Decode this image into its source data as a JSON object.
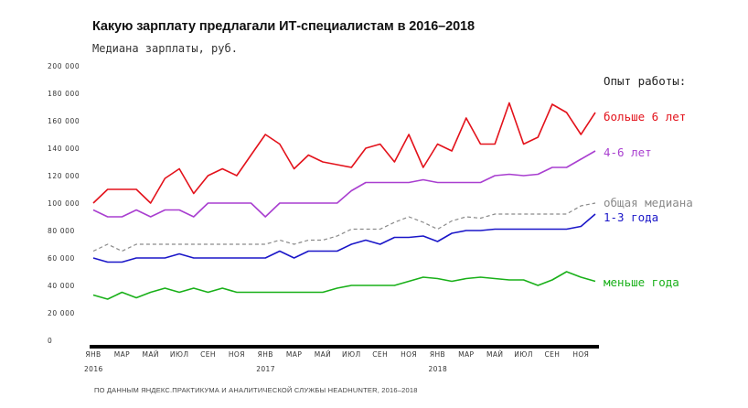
{
  "header": {
    "title": "Какую зарплату предлагали ИТ-специалистам в 2016–2018",
    "subtitle": "Медиана зарплаты, руб."
  },
  "legend_title": "Опыт работы:",
  "source": "ПО ДАННЫМ ЯНДЕКС.ПРАКТИКУМА И АНАЛИТИЧЕСКОЙ СЛУЖБЫ HEADHUNTER, 2016–2018",
  "colors": {
    "more6": "#e3121b",
    "y4_6": "#a93fd0",
    "median": "#8a8a8a",
    "y1_3": "#1a16c8",
    "less1": "#19b019",
    "axis": "#000000"
  },
  "chart_data": {
    "type": "line",
    "ylim": [
      0,
      200000
    ],
    "yticks": [
      0,
      20000,
      40000,
      60000,
      80000,
      100000,
      120000,
      140000,
      160000,
      180000,
      200000
    ],
    "ytick_labels": [
      "0",
      "20 000",
      "40 000",
      "60 000",
      "80 000",
      "100 000",
      "120 000",
      "140 000",
      "160 000",
      "180 000",
      "200 000"
    ],
    "x": [
      "2016-01",
      "2016-02",
      "2016-03",
      "2016-04",
      "2016-05",
      "2016-06",
      "2016-07",
      "2016-08",
      "2016-09",
      "2016-10",
      "2016-11",
      "2016-12",
      "2017-01",
      "2017-02",
      "2017-03",
      "2017-04",
      "2017-05",
      "2017-06",
      "2017-07",
      "2017-08",
      "2017-09",
      "2017-10",
      "2017-11",
      "2017-12",
      "2018-01",
      "2018-02",
      "2018-03",
      "2018-04",
      "2018-05",
      "2018-06",
      "2018-07",
      "2018-08",
      "2018-09",
      "2018-10",
      "2018-11",
      "2018-12"
    ],
    "xtick_labels": [
      "ЯНВ",
      "МАР",
      "МАЙ",
      "ИЮЛ",
      "СЕН",
      "НОЯ",
      "ЯНВ",
      "МАР",
      "МАЙ",
      "ИЮЛ",
      "СЕН",
      "НОЯ",
      "ЯНВ",
      "МАР",
      "МАЙ",
      "ИЮЛ",
      "СЕН",
      "НОЯ"
    ],
    "year_labels": [
      "2016",
      "2017",
      "2018"
    ],
    "series": [
      {
        "name": "больше 6 лет",
        "color_key": "more6",
        "dashed": false,
        "values": [
          100000,
          110000,
          110000,
          110000,
          100000,
          118000,
          125000,
          107000,
          120000,
          125000,
          120000,
          135000,
          150000,
          143000,
          125000,
          135000,
          130000,
          128000,
          126000,
          140000,
          143000,
          130000,
          150000,
          126000,
          143000,
          138000,
          162000,
          143000,
          143000,
          173000,
          143000,
          148000,
          172000,
          166000,
          150000,
          166000
        ]
      },
      {
        "name": "4-6 лет",
        "color_key": "y4_6",
        "dashed": false,
        "values": [
          95000,
          90000,
          90000,
          95000,
          90000,
          95000,
          95000,
          90000,
          100000,
          100000,
          100000,
          100000,
          90000,
          100000,
          100000,
          100000,
          100000,
          100000,
          109000,
          115000,
          115000,
          115000,
          115000,
          117000,
          115000,
          115000,
          115000,
          115000,
          120000,
          121000,
          120000,
          121000,
          126000,
          126000,
          132000,
          138000
        ]
      },
      {
        "name": "общая медиана",
        "color_key": "median",
        "dashed": true,
        "values": [
          65000,
          70000,
          65000,
          70000,
          70000,
          70000,
          70000,
          70000,
          70000,
          70000,
          70000,
          70000,
          70000,
          73000,
          70000,
          73000,
          73000,
          76000,
          81000,
          81000,
          81000,
          86000,
          90000,
          86000,
          81000,
          87000,
          90000,
          89000,
          92000,
          92000,
          92000,
          92000,
          92000,
          92000,
          98000,
          100000
        ]
      },
      {
        "name": "1-3 года",
        "color_key": "y1_3",
        "dashed": false,
        "values": [
          60000,
          57000,
          57000,
          60000,
          60000,
          60000,
          63000,
          60000,
          60000,
          60000,
          60000,
          60000,
          60000,
          65000,
          60000,
          65000,
          65000,
          65000,
          70000,
          73000,
          70000,
          75000,
          75000,
          76000,
          72000,
          78000,
          80000,
          80000,
          81000,
          81000,
          81000,
          81000,
          81000,
          81000,
          83000,
          92000
        ]
      },
      {
        "name": "меньше года",
        "color_key": "less1",
        "dashed": false,
        "values": [
          33000,
          30000,
          35000,
          31000,
          35000,
          38000,
          35000,
          38000,
          35000,
          38000,
          35000,
          35000,
          35000,
          35000,
          35000,
          35000,
          35000,
          38000,
          40000,
          40000,
          40000,
          40000,
          43000,
          46000,
          45000,
          43000,
          45000,
          46000,
          45000,
          44000,
          44000,
          40000,
          44000,
          50000,
          46000,
          43000
        ]
      }
    ]
  }
}
